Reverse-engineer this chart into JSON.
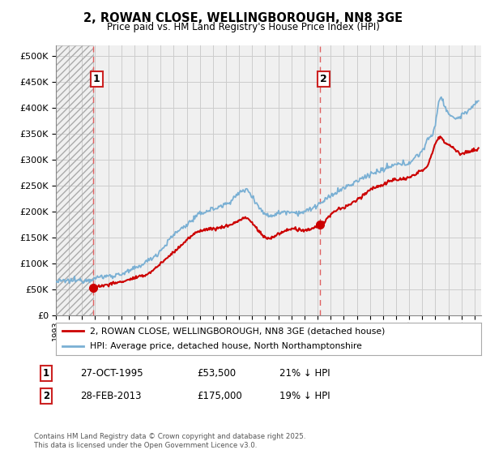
{
  "title": "2, ROWAN CLOSE, WELLINGBOROUGH, NN8 3GE",
  "subtitle": "Price paid vs. HM Land Registry's House Price Index (HPI)",
  "legend_line1": "2, ROWAN CLOSE, WELLINGBOROUGH, NN8 3GE (detached house)",
  "legend_line2": "HPI: Average price, detached house, North Northamptonshire",
  "transaction1_label": "1",
  "transaction1_date": "27-OCT-1995",
  "transaction1_price": "£53,500",
  "transaction1_hpi": "21% ↓ HPI",
  "transaction2_label": "2",
  "transaction2_date": "28-FEB-2013",
  "transaction2_price": "£175,000",
  "transaction2_hpi": "19% ↓ HPI",
  "footnote": "Contains HM Land Registry data © Crown copyright and database right 2025.\nThis data is licensed under the Open Government Licence v3.0.",
  "sale1_x": 1995.82,
  "sale1_y": 53500,
  "sale2_x": 2013.16,
  "sale2_y": 175000,
  "red_line_color": "#cc0000",
  "blue_line_color": "#7ab0d4",
  "grid_color": "#cccccc",
  "background_color": "#ffffff",
  "plot_bg_color": "#f0f0f0",
  "ylim": [
    0,
    520000
  ],
  "xlim_start": 1993.0,
  "xlim_end": 2025.5
}
